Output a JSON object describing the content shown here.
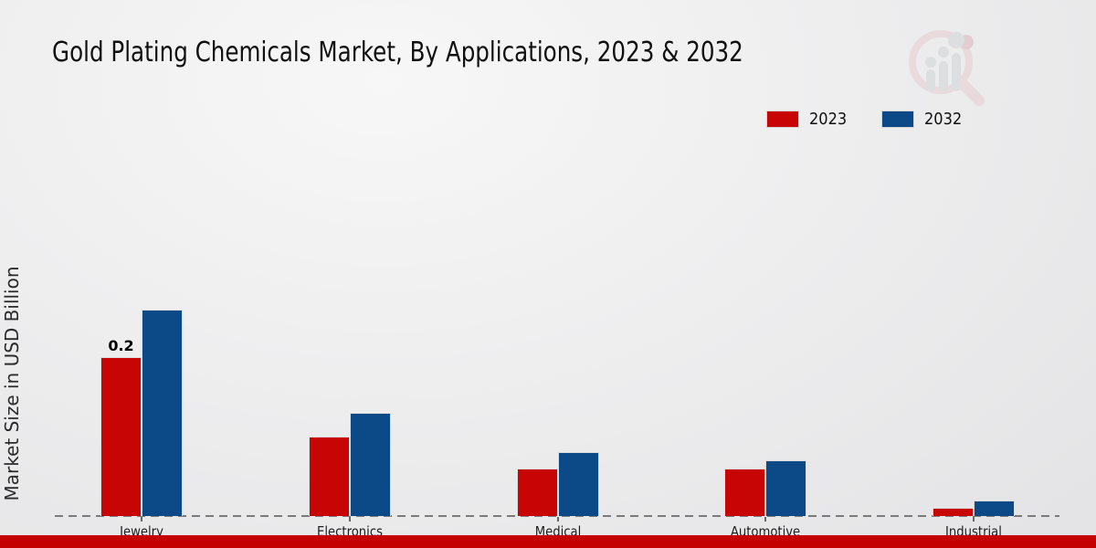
{
  "title": "Gold Plating Chemicals Market, By Applications, 2023 & 2032",
  "ylabel": "Market Size in USD Billion",
  "colors": {
    "series_2023": "#c80505",
    "series_2032": "#0b4a87",
    "footer_strip": "#c40000",
    "axis_dash": "#7b7b7b",
    "background_light": "#f7f7f7",
    "background_dark": "#e3e3e5"
  },
  "legend": {
    "items": [
      {
        "label": "2023",
        "color": "#c80505"
      },
      {
        "label": "2032",
        "color": "#0b4a87"
      }
    ]
  },
  "logo_name": "magnifier-bar-chart-watermark",
  "chart_data": {
    "type": "bar",
    "title": "Gold Plating Chemicals Market, By Applications, 2023 & 2032",
    "xlabel": "",
    "ylabel": "Market Size in USD Billion",
    "categories": [
      "Jewelry",
      "Electronics",
      "Medical",
      "Automotive",
      "Industrial"
    ],
    "series": [
      {
        "name": "2023",
        "color": "#c80505",
        "values": [
          0.2,
          0.1,
          0.06,
          0.06,
          0.01
        ]
      },
      {
        "name": "2032",
        "color": "#0b4a87",
        "values": [
          0.26,
          0.13,
          0.08,
          0.07,
          0.02
        ]
      }
    ],
    "data_labels": [
      {
        "series": "2023",
        "category": "Jewelry",
        "text": "0.2"
      }
    ],
    "ylim": [
      0,
      0.3
    ],
    "grid": false,
    "axis_style": "dashed-baseline-only",
    "legend_position": "top-right"
  }
}
